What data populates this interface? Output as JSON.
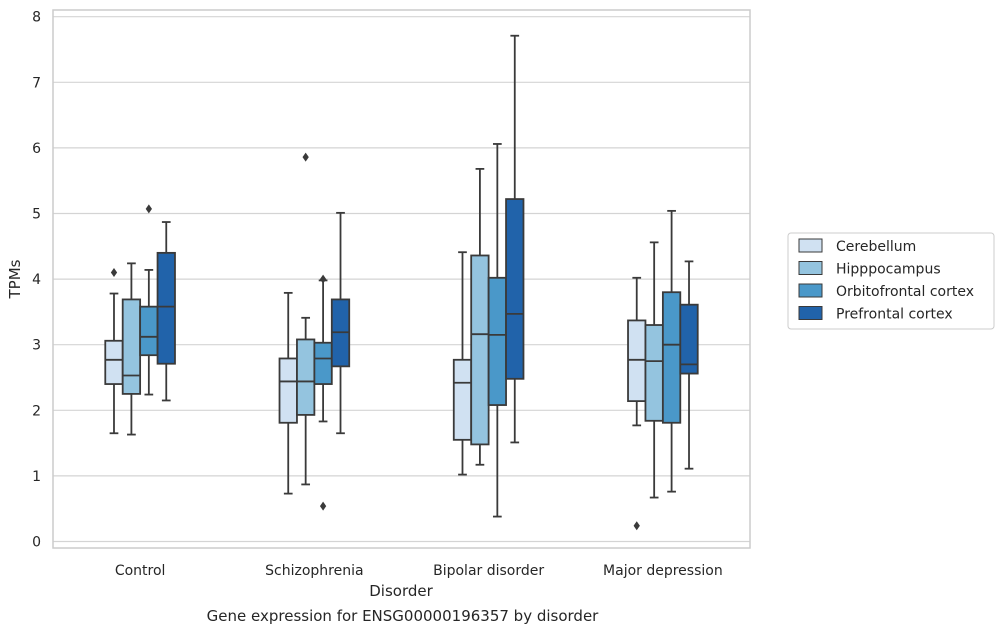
{
  "caption": "Gene expression for ENSG00000196357 by disorder",
  "chart_data": {
    "type": "boxplot",
    "xlabel": "Disorder",
    "ylabel": "TPMs",
    "ylim": [
      -0.1,
      8.1
    ],
    "yticks": [
      0,
      1,
      2,
      3,
      4,
      5,
      6,
      7,
      8
    ],
    "grid": "horizontal",
    "legend_position": "right",
    "categories": [
      "Control",
      "Schizophrenia",
      "Bipolar disorder",
      "Major depression"
    ],
    "series": [
      {
        "name": "Cerebellum",
        "color": "#d0e1f2",
        "boxes": [
          {
            "whisker_low": 1.65,
            "q1": 2.4,
            "median": 2.77,
            "q3": 3.06,
            "whisker_high": 3.78,
            "outliers": [
              4.1
            ]
          },
          {
            "whisker_low": 0.73,
            "q1": 1.81,
            "median": 2.44,
            "q3": 2.79,
            "whisker_high": 3.79,
            "outliers": []
          },
          {
            "whisker_low": 1.02,
            "q1": 1.55,
            "median": 2.42,
            "q3": 2.77,
            "whisker_high": 4.41,
            "outliers": []
          },
          {
            "whisker_low": 1.77,
            "q1": 2.14,
            "median": 2.77,
            "q3": 3.37,
            "whisker_high": 4.02,
            "outliers": [
              0.24
            ]
          }
        ]
      },
      {
        "name": "Hipppocampus",
        "color": "#94c4df",
        "boxes": [
          {
            "whisker_low": 1.63,
            "q1": 2.25,
            "median": 2.53,
            "q3": 3.69,
            "whisker_high": 4.24,
            "outliers": []
          },
          {
            "whisker_low": 0.87,
            "q1": 1.93,
            "median": 2.44,
            "q3": 3.08,
            "whisker_high": 3.41,
            "outliers": [
              5.86
            ]
          },
          {
            "whisker_low": 1.17,
            "q1": 1.48,
            "median": 3.16,
            "q3": 4.36,
            "whisker_high": 5.68,
            "outliers": []
          },
          {
            "whisker_low": 0.67,
            "q1": 1.84,
            "median": 2.75,
            "q3": 3.3,
            "whisker_high": 4.56,
            "outliers": []
          }
        ]
      },
      {
        "name": "Orbitofrontal cortex",
        "color": "#4a98c9",
        "boxes": [
          {
            "whisker_low": 2.24,
            "q1": 2.84,
            "median": 3.12,
            "q3": 3.58,
            "whisker_high": 4.14,
            "outliers": [
              5.07
            ]
          },
          {
            "whisker_low": 1.83,
            "q1": 2.4,
            "median": 2.79,
            "q3": 3.03,
            "whisker_high": 3.98,
            "outliers": [
              4.0,
              0.54
            ]
          },
          {
            "whisker_low": 0.38,
            "q1": 2.08,
            "median": 3.15,
            "q3": 4.02,
            "whisker_high": 6.06,
            "outliers": []
          },
          {
            "whisker_low": 0.76,
            "q1": 1.81,
            "median": 3.0,
            "q3": 3.8,
            "whisker_high": 5.04,
            "outliers": []
          }
        ]
      },
      {
        "name": "Prefrontal cortex",
        "color": "#2163aa",
        "boxes": [
          {
            "whisker_low": 2.15,
            "q1": 2.71,
            "median": 3.58,
            "q3": 4.4,
            "whisker_high": 4.87,
            "outliers": []
          },
          {
            "whisker_low": 1.65,
            "q1": 2.67,
            "median": 3.19,
            "q3": 3.69,
            "whisker_high": 5.01,
            "outliers": []
          },
          {
            "whisker_low": 1.51,
            "q1": 2.48,
            "median": 3.47,
            "q3": 5.22,
            "whisker_high": 7.71,
            "outliers": []
          },
          {
            "whisker_low": 1.11,
            "q1": 2.56,
            "median": 2.7,
            "q3": 3.61,
            "whisker_high": 4.27,
            "outliers": []
          }
        ]
      }
    ]
  }
}
